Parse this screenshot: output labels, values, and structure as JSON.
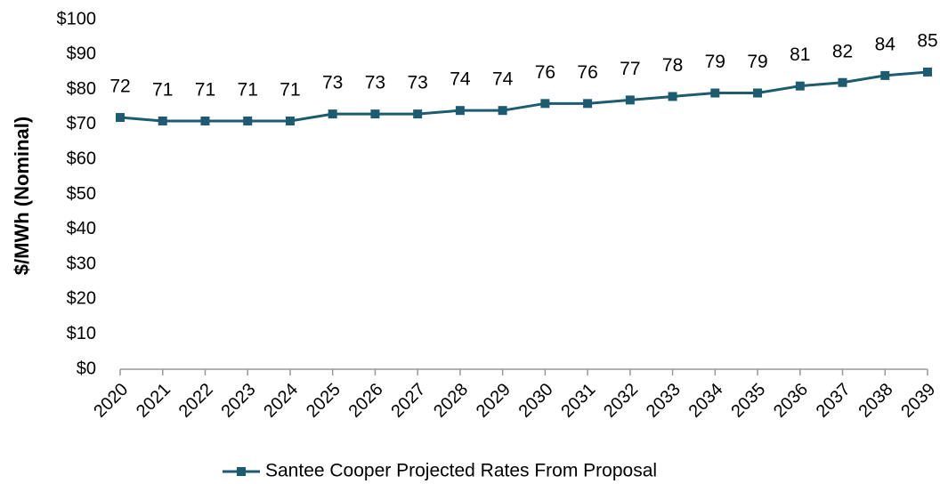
{
  "chart_data": {
    "type": "line",
    "y_label": "$/MWh (Nominal)",
    "categories": [
      "2020",
      "2021",
      "2022",
      "2023",
      "2024",
      "2025",
      "2026",
      "2027",
      "2028",
      "2029",
      "2030",
      "2031",
      "2032",
      "2033",
      "2034",
      "2035",
      "2036",
      "2037",
      "2038",
      "2039"
    ],
    "series": [
      {
        "name": "Santee Cooper Projected Rates From Proposal",
        "color": "#1d5b70",
        "values": [
          72,
          71,
          71,
          71,
          71,
          73,
          73,
          73,
          74,
          74,
          76,
          76,
          77,
          78,
          79,
          79,
          81,
          82,
          84,
          85
        ]
      }
    ],
    "ylim": [
      0,
      100
    ],
    "yticks": [
      {
        "value": 0,
        "label": "$0"
      },
      {
        "value": 10,
        "label": "$10"
      },
      {
        "value": 20,
        "label": "$20"
      },
      {
        "value": 30,
        "label": "$30"
      },
      {
        "value": 40,
        "label": "$40"
      },
      {
        "value": 50,
        "label": "$50"
      },
      {
        "value": 60,
        "label": "$60"
      },
      {
        "value": 70,
        "label": "$70"
      },
      {
        "value": 80,
        "label": "$80"
      },
      {
        "value": 90,
        "label": "$90"
      },
      {
        "value": 100,
        "label": "$100"
      }
    ],
    "legend": "bottom"
  }
}
